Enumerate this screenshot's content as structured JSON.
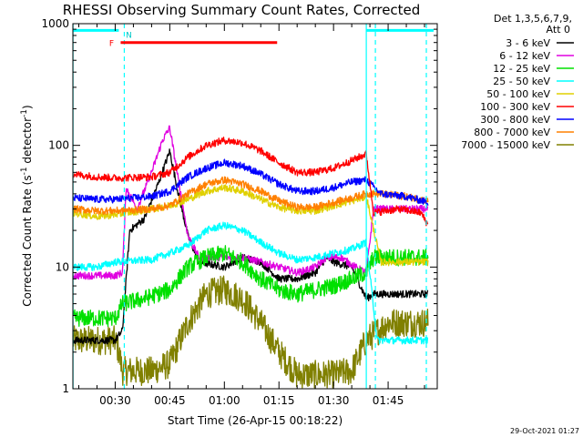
{
  "chart_data": {
    "type": "line",
    "title": "RHESSI Observing Summary Count Rates, Corrected",
    "xlabel": "Start Time (26-Apr-15 00:18:22)",
    "ylabel": "Corrected Count Rate (s",
    "ylabel_sup1": "-1",
    "ylabel_mid": " detector",
    "ylabel_sup2": "-1",
    "ylabel_end": ")",
    "yscale": "log",
    "ylim": [
      1,
      1000
    ],
    "xlim_minutes": [
      18.37,
      118.5
    ],
    "y_ticks": [
      {
        "v": 1,
        "label": "1"
      },
      {
        "v": 10,
        "label": "10"
      },
      {
        "v": 100,
        "label": "100"
      },
      {
        "v": 1000,
        "label": "1000"
      }
    ],
    "x_ticks": [
      {
        "v": 30,
        "label": "00:30"
      },
      {
        "v": 45,
        "label": "00:45"
      },
      {
        "v": 60,
        "label": "01:00"
      },
      {
        "v": 75,
        "label": "01:15"
      },
      {
        "v": 90,
        "label": "01:30"
      },
      {
        "v": 105,
        "label": "01:45"
      }
    ],
    "legend": {
      "header_line1": "Det 1,3,5,6,7,9,",
      "header_line2": "Att 0",
      "placement": "right",
      "entries": [
        {
          "label": "3 - 6 keV",
          "color": "#000000"
        },
        {
          "label": "6 - 12 keV",
          "color": "#e000e0"
        },
        {
          "label": "12 - 25 keV",
          "color": "#00e000"
        },
        {
          "label": "25 - 50 keV",
          "color": "#00ffff"
        },
        {
          "label": "50 - 100 keV",
          "color": "#e0d000"
        },
        {
          "label": "100 - 300 keV",
          "color": "#ff0000"
        },
        {
          "label": "300 - 800 keV",
          "color": "#0000ff"
        },
        {
          "label": "800 - 7000 keV",
          "color": "#ff8000"
        },
        {
          "label": "7000 - 15000 keV",
          "color": "#808000"
        }
      ]
    },
    "flags": {
      "f_label": "F",
      "n_label": "N",
      "flare_start": 31.5,
      "flare_end": 74.5,
      "night_end": 31.0,
      "night2_start": 99.0,
      "flare_level": 700,
      "night_level": 880
    },
    "vlines_solid": [
      18.4,
      99.0
    ],
    "vlines_dashed": [
      32.5,
      101.5,
      115.5
    ],
    "series": [
      {
        "name": "7000 - 15000 keV",
        "color": "#808000",
        "points": [
          [
            18.4,
            2.5
          ],
          [
            30,
            2.5
          ],
          [
            31,
            2.0
          ],
          [
            32,
            1.4
          ],
          [
            40,
            1.4
          ],
          [
            45,
            1.6
          ],
          [
            50,
            3.5
          ],
          [
            55,
            6.0
          ],
          [
            60,
            6.5
          ],
          [
            65,
            5.5
          ],
          [
            70,
            3.5
          ],
          [
            75,
            2.0
          ],
          [
            80,
            1.3
          ],
          [
            90,
            1.3
          ],
          [
            95,
            1.4
          ],
          [
            99,
            2.5
          ],
          [
            105,
            3.5
          ],
          [
            116,
            3.5
          ]
        ]
      },
      {
        "name": "3 - 6 keV",
        "color": "#000000",
        "points": [
          [
            18.4,
            2.5
          ],
          [
            30,
            2.5
          ],
          [
            32,
            3.0
          ],
          [
            34,
            20
          ],
          [
            38,
            25
          ],
          [
            42,
            50
          ],
          [
            45,
            90
          ],
          [
            47,
            45
          ],
          [
            50,
            18
          ],
          [
            53,
            11
          ],
          [
            60,
            10
          ],
          [
            65,
            12
          ],
          [
            70,
            11
          ],
          [
            75,
            8
          ],
          [
            80,
            8
          ],
          [
            85,
            9
          ],
          [
            88,
            12
          ],
          [
            90,
            11
          ],
          [
            95,
            10
          ],
          [
            99,
            5.5
          ],
          [
            101,
            6
          ],
          [
            116,
            6
          ]
        ]
      },
      {
        "name": "6 - 12 keV",
        "color": "#e000e0",
        "points": [
          [
            18.4,
            8.5
          ],
          [
            30,
            8.5
          ],
          [
            32,
            9
          ],
          [
            33,
            45
          ],
          [
            36,
            30
          ],
          [
            40,
            60
          ],
          [
            43,
            110
          ],
          [
            45,
            140
          ],
          [
            47,
            60
          ],
          [
            50,
            18
          ],
          [
            53,
            12
          ],
          [
            60,
            12
          ],
          [
            65,
            12
          ],
          [
            70,
            11
          ],
          [
            75,
            10
          ],
          [
            80,
            9
          ],
          [
            85,
            10
          ],
          [
            88,
            12
          ],
          [
            92,
            12
          ],
          [
            96,
            10
          ],
          [
            99,
            9
          ],
          [
            101,
            30
          ],
          [
            106,
            30
          ],
          [
            116,
            30
          ]
        ]
      },
      {
        "name": "12 - 25 keV",
        "color": "#00e000",
        "points": [
          [
            18.4,
            3.8
          ],
          [
            30,
            3.8
          ],
          [
            32,
            5
          ],
          [
            38,
            5.5
          ],
          [
            45,
            6.5
          ],
          [
            50,
            10
          ],
          [
            55,
            12
          ],
          [
            60,
            13
          ],
          [
            65,
            11
          ],
          [
            70,
            8
          ],
          [
            75,
            6.5
          ],
          [
            80,
            6
          ],
          [
            85,
            6.5
          ],
          [
            90,
            7
          ],
          [
            95,
            8
          ],
          [
            99,
            9
          ],
          [
            101,
            12
          ],
          [
            108,
            12
          ],
          [
            116,
            12
          ]
        ]
      },
      {
        "name": "25 - 50 keV",
        "color": "#00ffff",
        "points": [
          [
            18.4,
            10
          ],
          [
            25,
            10
          ],
          [
            30,
            11
          ],
          [
            40,
            11.5
          ],
          [
            45,
            13
          ],
          [
            50,
            15
          ],
          [
            55,
            20
          ],
          [
            60,
            22
          ],
          [
            65,
            20
          ],
          [
            70,
            16
          ],
          [
            75,
            13
          ],
          [
            80,
            11.5
          ],
          [
            85,
            12
          ],
          [
            90,
            13
          ],
          [
            95,
            14
          ],
          [
            99,
            16
          ],
          [
            102,
            2.5
          ],
          [
            110,
            2.5
          ],
          [
            116,
            2.5
          ]
        ]
      },
      {
        "name": "50 - 100 keV",
        "color": "#e0d000",
        "points": [
          [
            18.4,
            28
          ],
          [
            25,
            26
          ],
          [
            30,
            27
          ],
          [
            40,
            30
          ],
          [
            45,
            32
          ],
          [
            50,
            36
          ],
          [
            55,
            42
          ],
          [
            60,
            45
          ],
          [
            65,
            42
          ],
          [
            70,
            36
          ],
          [
            75,
            31
          ],
          [
            80,
            29
          ],
          [
            85,
            29
          ],
          [
            90,
            32
          ],
          [
            95,
            35
          ],
          [
            99,
            38
          ],
          [
            103,
            11
          ],
          [
            116,
            11
          ]
        ]
      },
      {
        "name": "800 - 7000 keV",
        "color": "#ff8000",
        "points": [
          [
            18.4,
            30
          ],
          [
            25,
            29
          ],
          [
            30,
            29
          ],
          [
            40,
            30
          ],
          [
            45,
            32
          ],
          [
            50,
            40
          ],
          [
            55,
            48
          ],
          [
            60,
            52
          ],
          [
            65,
            48
          ],
          [
            70,
            42
          ],
          [
            75,
            35
          ],
          [
            80,
            31
          ],
          [
            85,
            31
          ],
          [
            90,
            34
          ],
          [
            95,
            37
          ],
          [
            99,
            40
          ],
          [
            103,
            40
          ],
          [
            110,
            38
          ],
          [
            116,
            35
          ]
        ]
      },
      {
        "name": "300 - 800 keV",
        "color": "#0000ff",
        "points": [
          [
            18.4,
            37
          ],
          [
            25,
            36
          ],
          [
            30,
            36
          ],
          [
            40,
            38
          ],
          [
            45,
            42
          ],
          [
            50,
            55
          ],
          [
            55,
            65
          ],
          [
            60,
            72
          ],
          [
            65,
            68
          ],
          [
            70,
            58
          ],
          [
            75,
            48
          ],
          [
            80,
            42
          ],
          [
            85,
            42
          ],
          [
            90,
            45
          ],
          [
            95,
            50
          ],
          [
            99,
            52
          ],
          [
            103,
            40
          ],
          [
            110,
            38
          ],
          [
            116,
            34
          ]
        ]
      },
      {
        "name": "100 - 300 keV",
        "color": "#ff0000",
        "points": [
          [
            18.4,
            58
          ],
          [
            25,
            55
          ],
          [
            30,
            54
          ],
          [
            40,
            55
          ],
          [
            45,
            60
          ],
          [
            50,
            80
          ],
          [
            55,
            100
          ],
          [
            60,
            110
          ],
          [
            65,
            105
          ],
          [
            70,
            90
          ],
          [
            75,
            72
          ],
          [
            80,
            60
          ],
          [
            85,
            60
          ],
          [
            90,
            65
          ],
          [
            95,
            75
          ],
          [
            99,
            85
          ],
          [
            101,
            28
          ],
          [
            108,
            30
          ],
          [
            114,
            28
          ],
          [
            116,
            22
          ]
        ]
      }
    ]
  },
  "footer": {
    "timestamp": "29-Oct-2021 01:27"
  }
}
